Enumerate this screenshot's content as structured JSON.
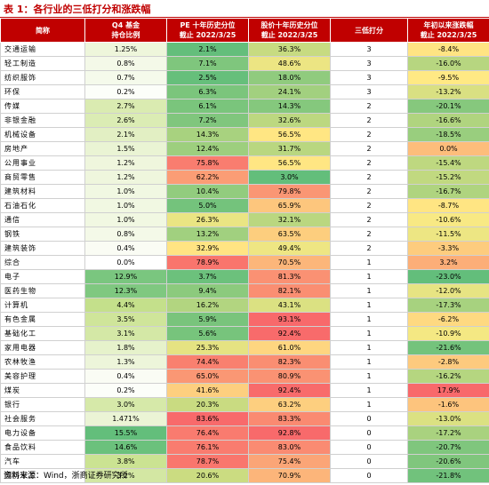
{
  "title": "表 1：各行业的三低打分和涨跌幅",
  "headers": {
    "name": "简称",
    "q4": [
      "Q4 基金",
      "持仓比例"
    ],
    "pe": [
      "PE 十年历史分位",
      "截止 2022/3/25"
    ],
    "price": [
      "股价十年历史分位",
      "截止 2022/3/25"
    ],
    "score": "三低打分",
    "chg": [
      "年初以来涨跌幅",
      "截止 2022/3/25"
    ]
  },
  "rows": [
    {
      "name": "交通运输",
      "q4": "1.25%",
      "pe": "2.1%",
      "price": "36.3%",
      "score": "3",
      "chg": "-8.4%"
    },
    {
      "name": "轻工制造",
      "q4": "0.8%",
      "pe": "7.1%",
      "price": "48.6%",
      "score": "3",
      "chg": "-16.0%"
    },
    {
      "name": "纺织服饰",
      "q4": "0.7%",
      "pe": "2.5%",
      "price": "18.0%",
      "score": "3",
      "chg": "-9.5%"
    },
    {
      "name": "环保",
      "q4": "0.2%",
      "pe": "6.3%",
      "price": "24.1%",
      "score": "3",
      "chg": "-13.2%"
    },
    {
      "name": "传媒",
      "q4": "2.7%",
      "pe": "6.1%",
      "price": "14.3%",
      "score": "2",
      "chg": "-20.1%"
    },
    {
      "name": "非银金融",
      "q4": "2.6%",
      "pe": "7.2%",
      "price": "32.6%",
      "score": "2",
      "chg": "-16.6%"
    },
    {
      "name": "机械设备",
      "q4": "2.1%",
      "pe": "14.3%",
      "price": "56.5%",
      "score": "2",
      "chg": "-18.5%"
    },
    {
      "name": "房地产",
      "q4": "1.5%",
      "pe": "12.4%",
      "price": "31.7%",
      "score": "2",
      "chg": "0.0%"
    },
    {
      "name": "公用事业",
      "q4": "1.2%",
      "pe": "75.8%",
      "price": "56.5%",
      "score": "2",
      "chg": "-15.4%"
    },
    {
      "name": "商贸零售",
      "q4": "1.2%",
      "pe": "62.2%",
      "price": "3.0%",
      "score": "2",
      "chg": "-15.2%"
    },
    {
      "name": "建筑材料",
      "q4": "1.0%",
      "pe": "10.4%",
      "price": "79.8%",
      "score": "2",
      "chg": "-16.7%"
    },
    {
      "name": "石油石化",
      "q4": "1.0%",
      "pe": "5.0%",
      "price": "65.9%",
      "score": "2",
      "chg": "-8.7%"
    },
    {
      "name": "通信",
      "q4": "1.0%",
      "pe": "26.3%",
      "price": "32.1%",
      "score": "2",
      "chg": "-10.6%"
    },
    {
      "name": "钢铁",
      "q4": "0.8%",
      "pe": "13.2%",
      "price": "63.5%",
      "score": "2",
      "chg": "-11.5%"
    },
    {
      "name": "建筑装饰",
      "q4": "0.4%",
      "pe": "32.9%",
      "price": "49.4%",
      "score": "2",
      "chg": "-3.3%"
    },
    {
      "name": "综合",
      "q4": "0.0%",
      "pe": "78.9%",
      "price": "70.5%",
      "score": "1",
      "chg": "3.2%"
    },
    {
      "name": "电子",
      "q4": "12.9%",
      "pe": "3.7%",
      "price": "81.3%",
      "score": "1",
      "chg": "-23.0%"
    },
    {
      "name": "医药生物",
      "q4": "12.3%",
      "pe": "9.4%",
      "price": "82.1%",
      "score": "1",
      "chg": "-12.0%"
    },
    {
      "name": "计算机",
      "q4": "4.4%",
      "pe": "16.2%",
      "price": "43.1%",
      "score": "1",
      "chg": "-17.3%"
    },
    {
      "name": "有色金属",
      "q4": "3.5%",
      "pe": "5.9%",
      "price": "93.1%",
      "score": "1",
      "chg": "-6.2%"
    },
    {
      "name": "基础化工",
      "q4": "3.1%",
      "pe": "5.6%",
      "price": "92.4%",
      "score": "1",
      "chg": "-10.9%"
    },
    {
      "name": "家用电器",
      "q4": "1.8%",
      "pe": "25.3%",
      "price": "61.0%",
      "score": "1",
      "chg": "-21.6%"
    },
    {
      "name": "农林牧渔",
      "q4": "1.3%",
      "pe": "74.4%",
      "price": "82.3%",
      "score": "1",
      "chg": "-2.8%"
    },
    {
      "name": "美容护理",
      "q4": "0.4%",
      "pe": "65.0%",
      "price": "80.9%",
      "score": "1",
      "chg": "-16.2%"
    },
    {
      "name": "煤炭",
      "q4": "0.2%",
      "pe": "41.6%",
      "price": "92.4%",
      "score": "1",
      "chg": "17.9%"
    },
    {
      "name": "银行",
      "q4": "3.0%",
      "pe": "20.3%",
      "price": "63.2%",
      "score": "1",
      "chg": "-1.6%"
    },
    {
      "name": "社会服务",
      "q4": "1.471%",
      "pe": "83.6%",
      "price": "83.3%",
      "score": "0",
      "chg": "-13.0%"
    },
    {
      "name": "电力设备",
      "q4": "15.5%",
      "pe": "76.4%",
      "price": "92.8%",
      "score": "0",
      "chg": "-17.2%"
    },
    {
      "name": "食品饮料",
      "q4": "14.6%",
      "pe": "76.1%",
      "price": "83.0%",
      "score": "0",
      "chg": "-20.7%"
    },
    {
      "name": "汽车",
      "q4": "3.8%",
      "pe": "78.7%",
      "price": "75.4%",
      "score": "0",
      "chg": "-20.6%"
    },
    {
      "name": "国防军工",
      "q4": "3.2%",
      "pe": "20.6%",
      "price": "70.9%",
      "score": "0",
      "chg": "-21.8%"
    }
  ],
  "footer": "资料来源：Wind，浙商证券研究所"
}
